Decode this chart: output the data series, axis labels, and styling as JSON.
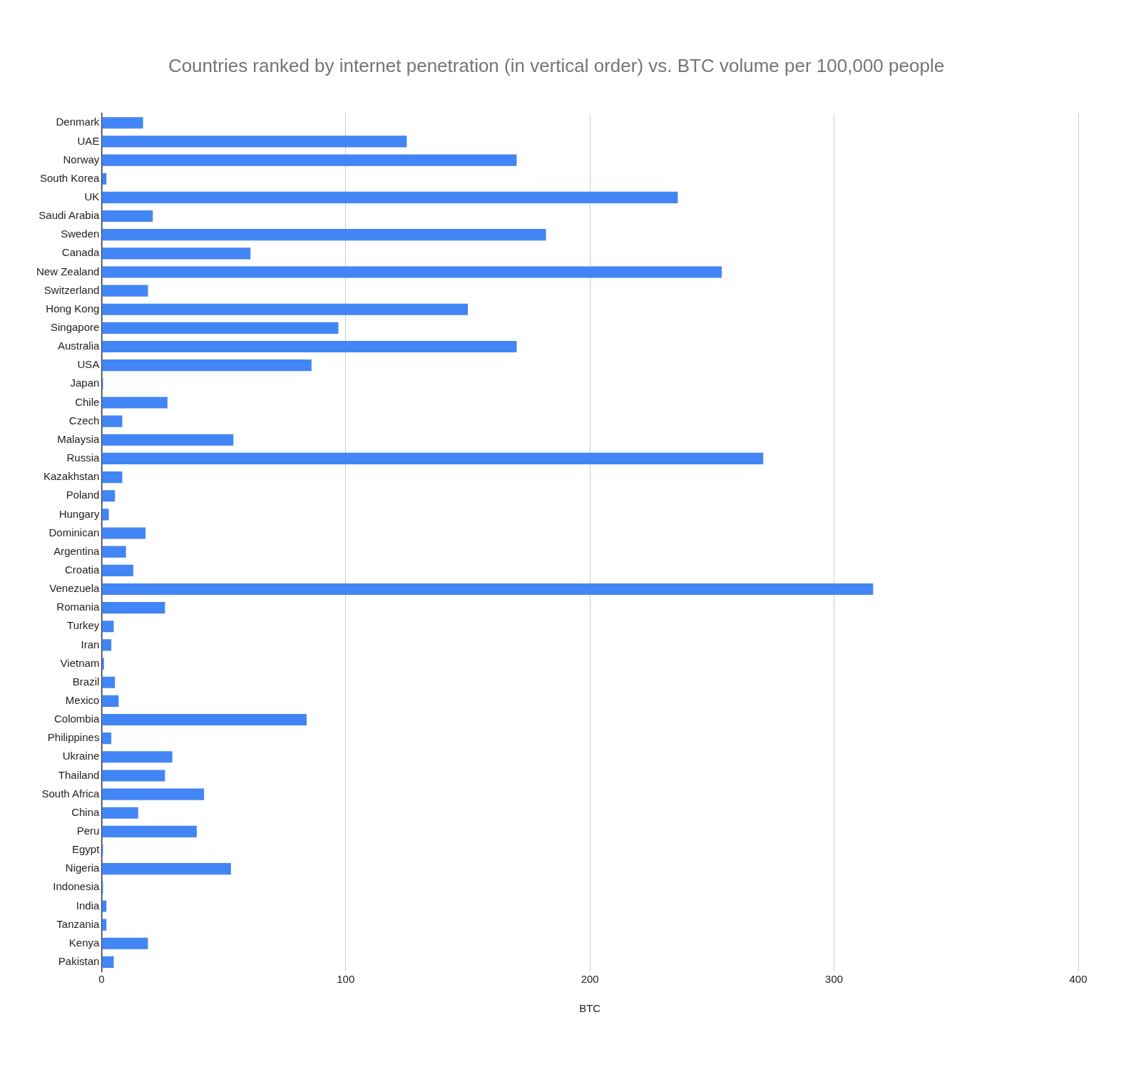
{
  "chart_data": {
    "type": "bar",
    "orientation": "horizontal",
    "title": "Countries ranked by internet penetration (in vertical order) vs. BTC volume per 100,000 people",
    "xlabel": "BTC",
    "categories": [
      "Denmark",
      "UAE",
      "Norway",
      "South Korea",
      "UK",
      "Saudi Arabia",
      "Sweden",
      "Canada",
      "New Zealand",
      "Switzerland",
      "Hong Kong",
      "Singapore",
      "Australia",
      "USA",
      "Japan",
      "Chile",
      "Czech",
      "Malaysia",
      "Russia",
      "Kazakhstan",
      "Poland",
      "Hungary",
      "Dominican",
      "Argentina",
      "Croatia",
      "Venezuela",
      "Romania",
      "Turkey",
      "Iran",
      "Vietnam",
      "Brazil",
      "Mexico",
      "Colombia",
      "Philippines",
      "Ukraine",
      "Thailand",
      "South Africa",
      "China",
      "Peru",
      "Egypt",
      "Nigeria",
      "Indonesia",
      "India",
      "Tanzania",
      "Kenya",
      "Pakistan"
    ],
    "values": [
      17,
      125,
      170,
      2,
      236,
      21,
      182,
      61,
      254,
      19,
      150,
      97,
      170,
      86,
      0.6,
      27,
      8.5,
      54,
      271,
      8.5,
      5.5,
      3,
      18,
      10,
      13,
      316,
      26,
      5,
      4,
      1,
      5.5,
      7,
      84,
      4,
      29,
      26,
      42,
      15,
      39,
      0.6,
      53,
      0.6,
      2,
      2,
      19,
      5
    ],
    "color": "#4285f4",
    "xlim": [
      0,
      400
    ],
    "xticks": [
      0,
      100,
      200,
      300,
      400
    ],
    "grid": "x",
    "legend": false
  }
}
